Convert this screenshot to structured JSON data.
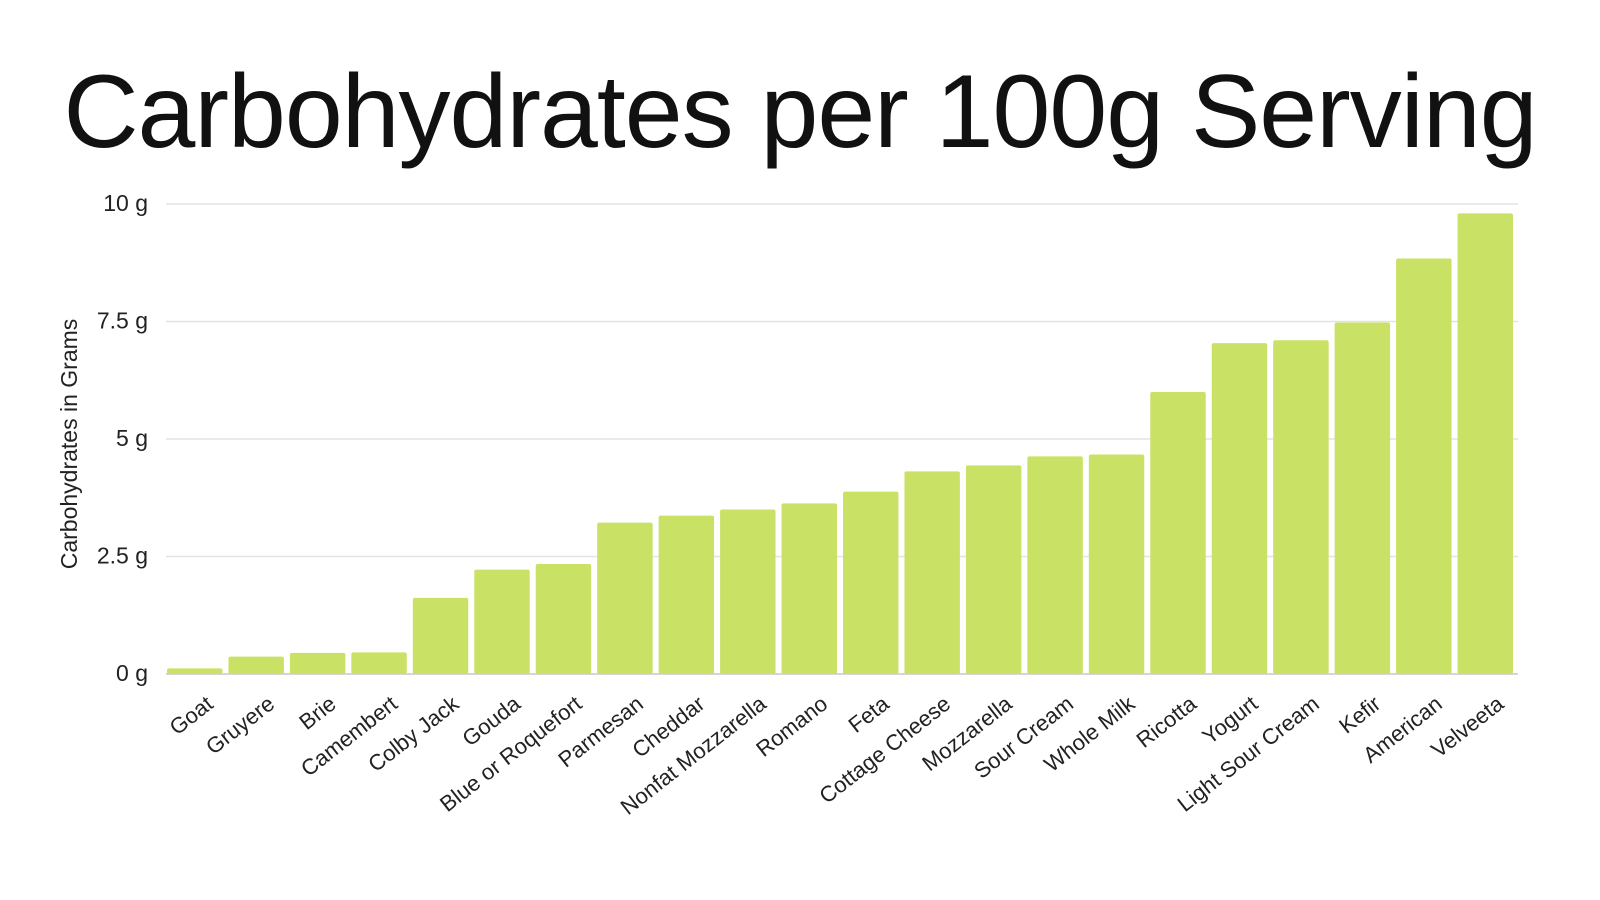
{
  "chart_data": {
    "type": "bar",
    "title": "Carbohydrates per 100g Serving",
    "xlabel": "",
    "ylabel": "Carbohydrates in Grams",
    "ylim": [
      0,
      10
    ],
    "yticks": [
      {
        "value": 0,
        "label": "0 g"
      },
      {
        "value": 2.5,
        "label": "2.5 g"
      },
      {
        "value": 5,
        "label": "5 g"
      },
      {
        "value": 7.5,
        "label": "7.5 g"
      },
      {
        "value": 10,
        "label": "10 g"
      }
    ],
    "grid": true,
    "legend": "none",
    "bar_color": "#c9e265",
    "categories": [
      "Goat",
      "Gruyere",
      "Brie",
      "Camembert",
      "Colby Jack",
      "Gouda",
      "Blue or Roquefort",
      "Parmesan",
      "Cheddar",
      "Nonfat Mozzarella",
      "Romano",
      "Feta",
      "Cottage Cheese",
      "Mozzarella",
      "Sour Cream",
      "Whole Milk",
      "Ricotta",
      "Yogurt",
      "Light Sour Cream",
      "Kefir",
      "American",
      "Velveeta"
    ],
    "values": [
      0.12,
      0.37,
      0.45,
      0.46,
      1.62,
      2.22,
      2.34,
      3.22,
      3.37,
      3.5,
      3.63,
      3.88,
      4.31,
      4.44,
      4.63,
      4.67,
      6.0,
      7.04,
      7.1,
      7.48,
      8.84,
      9.8
    ]
  }
}
